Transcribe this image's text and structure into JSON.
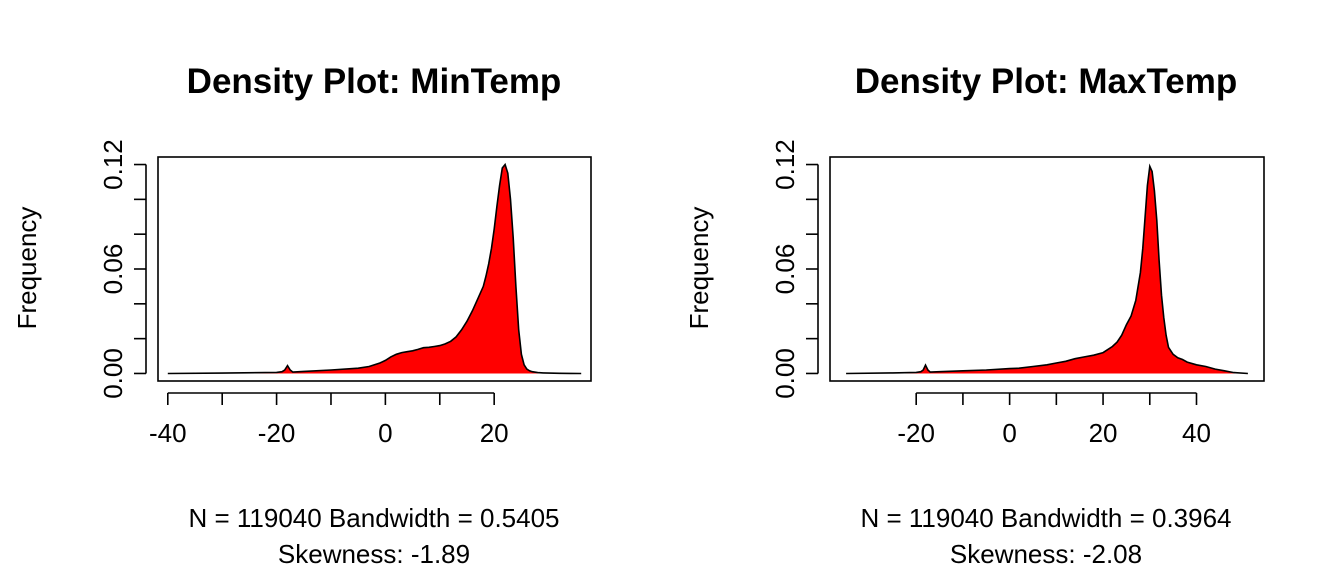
{
  "chart_data": [
    {
      "type": "area",
      "title": "Density Plot: MinTemp",
      "ylabel": "Frequency",
      "xlabel_line1": "N = 119040   Bandwidth = 0.5405",
      "xlabel_line2": "Skewness: -1.89",
      "xlim": [
        -40,
        36
      ],
      "ylim": [
        0,
        0.12
      ],
      "xticks": [
        "-40",
        "-20",
        "0",
        "20"
      ],
      "yticks": [
        "0.00",
        "0.06",
        "0.12"
      ],
      "fill_color": "#ff0000",
      "line_color": "#000000",
      "x": [
        -40,
        -30,
        -20,
        -19,
        -18.5,
        -18,
        -17.5,
        -17,
        -15,
        -10,
        -5,
        -3,
        -1,
        0,
        1,
        2,
        3,
        4,
        5,
        6,
        7,
        8,
        9,
        10,
        11,
        12,
        13,
        14,
        15,
        16,
        17,
        18,
        18.5,
        19,
        19.5,
        20,
        20.5,
        21,
        21.5,
        22,
        22.5,
        23,
        23.5,
        24,
        24.5,
        25,
        25.5,
        26,
        26.5,
        27,
        28,
        29,
        30,
        32,
        34,
        36
      ],
      "y": [
        0,
        0.0002,
        0.0006,
        0.001,
        0.002,
        0.0045,
        0.002,
        0.0008,
        0.0012,
        0.002,
        0.003,
        0.004,
        0.006,
        0.0075,
        0.0095,
        0.011,
        0.012,
        0.0125,
        0.013,
        0.0138,
        0.0148,
        0.015,
        0.0155,
        0.016,
        0.017,
        0.0185,
        0.021,
        0.025,
        0.03,
        0.036,
        0.043,
        0.05,
        0.056,
        0.063,
        0.072,
        0.083,
        0.096,
        0.108,
        0.118,
        0.12,
        0.115,
        0.1,
        0.078,
        0.05,
        0.025,
        0.011,
        0.005,
        0.0025,
        0.0015,
        0.001,
        0.0005,
        0.0003,
        0.0002,
        0.0001,
        5e-05,
        0
      ]
    },
    {
      "type": "area",
      "title": "Density Plot: MaxTemp",
      "ylabel": "Frequency",
      "xlabel_line1": "N = 119040   Bandwidth = 0.3964",
      "xlabel_line2": "Skewness: -2.08",
      "xlim": [
        -35,
        51
      ],
      "ylim": [
        0,
        0.12
      ],
      "xticks": [
        "-20",
        "0",
        "20",
        "40"
      ],
      "yticks": [
        "0.00",
        "0.06",
        "0.12"
      ],
      "fill_color": "#ff0000",
      "line_color": "#000000",
      "x": [
        -35,
        -25,
        -20,
        -19,
        -18.5,
        -18,
        -17.5,
        -17,
        -15,
        -10,
        -5,
        0,
        2,
        5,
        8,
        10,
        12,
        14,
        16,
        18,
        20,
        22,
        23,
        24,
        25,
        26,
        27,
        28,
        28.5,
        29,
        29.5,
        30,
        30.5,
        31,
        31.5,
        32,
        32.5,
        33,
        33.5,
        34,
        35,
        36,
        37,
        38,
        40,
        42,
        44,
        46,
        48,
        51
      ],
      "y": [
        0,
        0.0003,
        0.0006,
        0.001,
        0.002,
        0.0048,
        0.002,
        0.0008,
        0.001,
        0.0015,
        0.002,
        0.0028,
        0.003,
        0.004,
        0.005,
        0.006,
        0.007,
        0.0085,
        0.0095,
        0.0105,
        0.012,
        0.0155,
        0.018,
        0.022,
        0.028,
        0.033,
        0.042,
        0.058,
        0.072,
        0.09,
        0.108,
        0.119,
        0.116,
        0.105,
        0.088,
        0.065,
        0.045,
        0.032,
        0.022,
        0.015,
        0.011,
        0.009,
        0.008,
        0.0065,
        0.005,
        0.004,
        0.0025,
        0.0015,
        0.0005,
        0
      ]
    }
  ]
}
